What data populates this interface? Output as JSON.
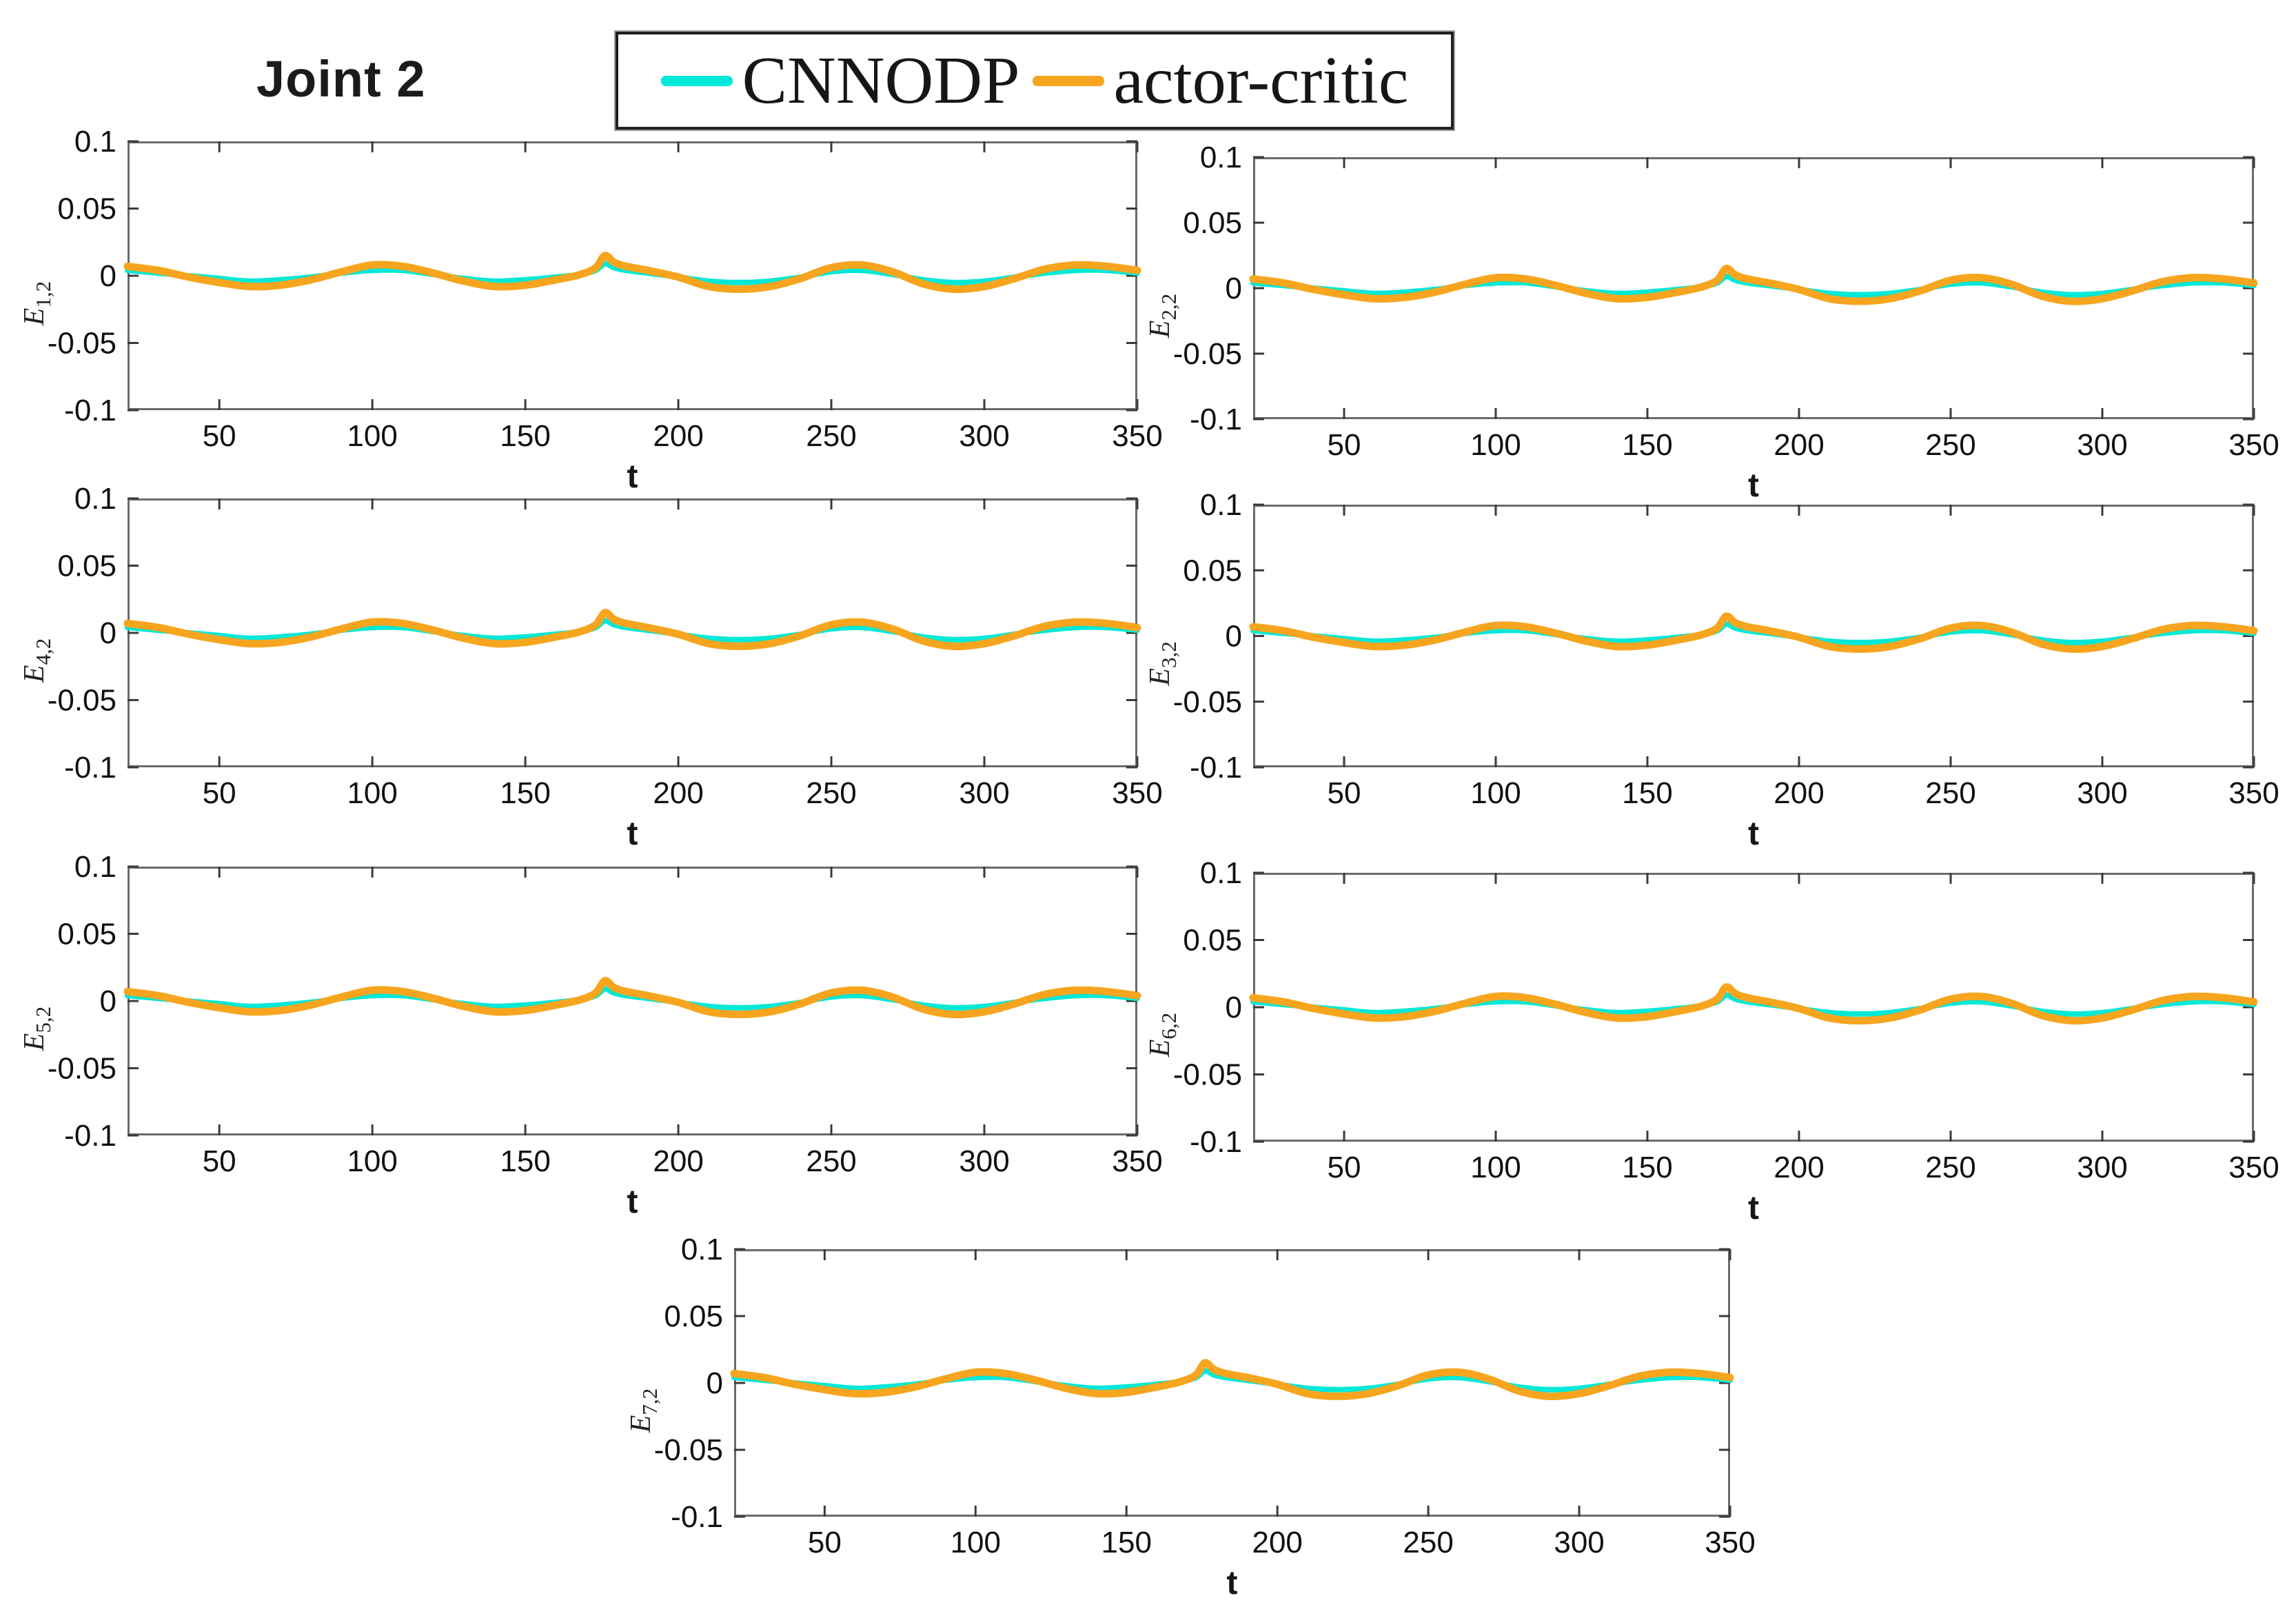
{
  "header": {
    "title": "Joint 2"
  },
  "legend": {
    "items": [
      {
        "label": "CNNODP",
        "color": "#00e8d6"
      },
      {
        "label": "actor-critic",
        "color": "#f7a51e"
      }
    ]
  },
  "chart_data": {
    "type": "line",
    "title": "Joint 2",
    "xlabel": "t",
    "xlim": [
      20,
      350
    ],
    "ylim": [
      -0.1,
      0.1
    ],
    "xticks": [
      50,
      100,
      150,
      200,
      250,
      300,
      350
    ],
    "yticks": [
      0.1,
      0.05,
      0,
      -0.05,
      -0.1
    ],
    "ytick_labels": [
      "0.1",
      "0.05",
      "0",
      "-0.05",
      "-0.1"
    ],
    "grid": false,
    "legend_position": "top-center",
    "note": "Seven subplots (2 columns x 3 rows plus one centered bottom panel) showing tracking-error curves for Joint 2; all panels display nearly identical small oscillations around zero with a sharp spike near t=176",
    "subplots": [
      {
        "ylabel_base": "E",
        "ylabel_sub": "1,2",
        "position": "row1-left"
      },
      {
        "ylabel_base": "E",
        "ylabel_sub": "2,2",
        "position": "row1-right"
      },
      {
        "ylabel_base": "E",
        "ylabel_sub": "4,2",
        "position": "row2-left"
      },
      {
        "ylabel_base": "E",
        "ylabel_sub": "3,2",
        "position": "row2-right"
      },
      {
        "ylabel_base": "E",
        "ylabel_sub": "5,2",
        "position": "row3-left"
      },
      {
        "ylabel_base": "E",
        "ylabel_sub": "6,2",
        "position": "row3-right"
      },
      {
        "ylabel_base": "E",
        "ylabel_sub": "7,2",
        "position": "row4-center"
      }
    ],
    "x": [
      20,
      30,
      40,
      50,
      60,
      70,
      80,
      90,
      100,
      110,
      120,
      130,
      140,
      150,
      160,
      168,
      173,
      176,
      179,
      183,
      190,
      200,
      210,
      220,
      230,
      240,
      250,
      260,
      270,
      280,
      290,
      300,
      310,
      320,
      330,
      340,
      350
    ],
    "series": [
      {
        "name": "CNNODP",
        "color": "#00e8d6",
        "linewidth": 8,
        "values": [
          0.004,
          0.002,
          0.0,
          -0.002,
          -0.004,
          -0.003,
          -0.001,
          0.002,
          0.004,
          0.004,
          0.001,
          -0.002,
          -0.004,
          -0.003,
          -0.001,
          0.001,
          0.004,
          0.009,
          0.006,
          0.004,
          0.002,
          -0.001,
          -0.004,
          -0.005,
          -0.004,
          -0.001,
          0.003,
          0.004,
          0.001,
          -0.003,
          -0.005,
          -0.004,
          -0.001,
          0.002,
          0.004,
          0.004,
          0.002
        ]
      },
      {
        "name": "actor-critic",
        "color": "#f7a51e",
        "linewidth": 11,
        "values": [
          0.007,
          0.004,
          -0.001,
          -0.005,
          -0.008,
          -0.007,
          -0.003,
          0.003,
          0.008,
          0.007,
          0.002,
          -0.004,
          -0.008,
          -0.007,
          -0.003,
          0.001,
          0.006,
          0.015,
          0.01,
          0.007,
          0.004,
          -0.001,
          -0.008,
          -0.01,
          -0.008,
          -0.002,
          0.006,
          0.008,
          0.003,
          -0.006,
          -0.01,
          -0.008,
          -0.002,
          0.005,
          0.008,
          0.007,
          0.004
        ]
      }
    ]
  }
}
